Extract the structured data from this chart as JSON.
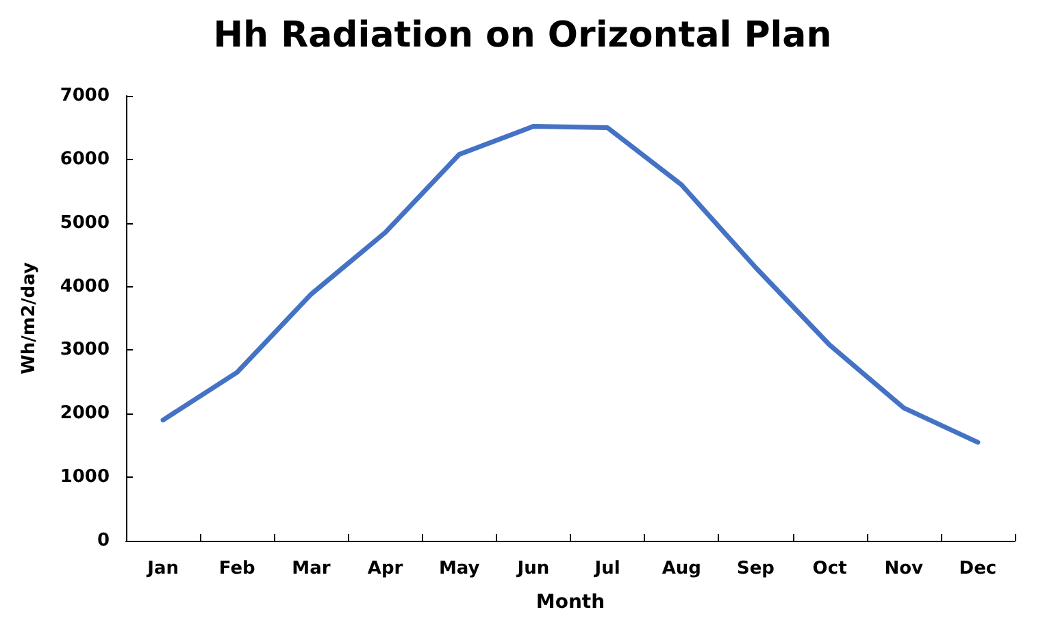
{
  "chart_data": {
    "type": "line",
    "title": "Hh Radiation on Orizontal Plan",
    "xlabel": "Month",
    "ylabel": "Wh/m2/day",
    "categories": [
      "Jan",
      "Feb",
      "Mar",
      "Apr",
      "May",
      "Jun",
      "Jul",
      "Aug",
      "Sep",
      "Oct",
      "Nov",
      "Dec"
    ],
    "series": [
      {
        "color": "#4472c4",
        "values": [
          1900,
          2650,
          3880,
          4850,
          6080,
          6520,
          6500,
          5600,
          4300,
          3080,
          2090,
          1550
        ]
      }
    ],
    "ylim": [
      0,
      7000
    ],
    "yticks": [
      0,
      1000,
      2000,
      3000,
      4000,
      5000,
      6000,
      7000
    ],
    "grid": false,
    "marker": "none",
    "line_style": "solid"
  }
}
